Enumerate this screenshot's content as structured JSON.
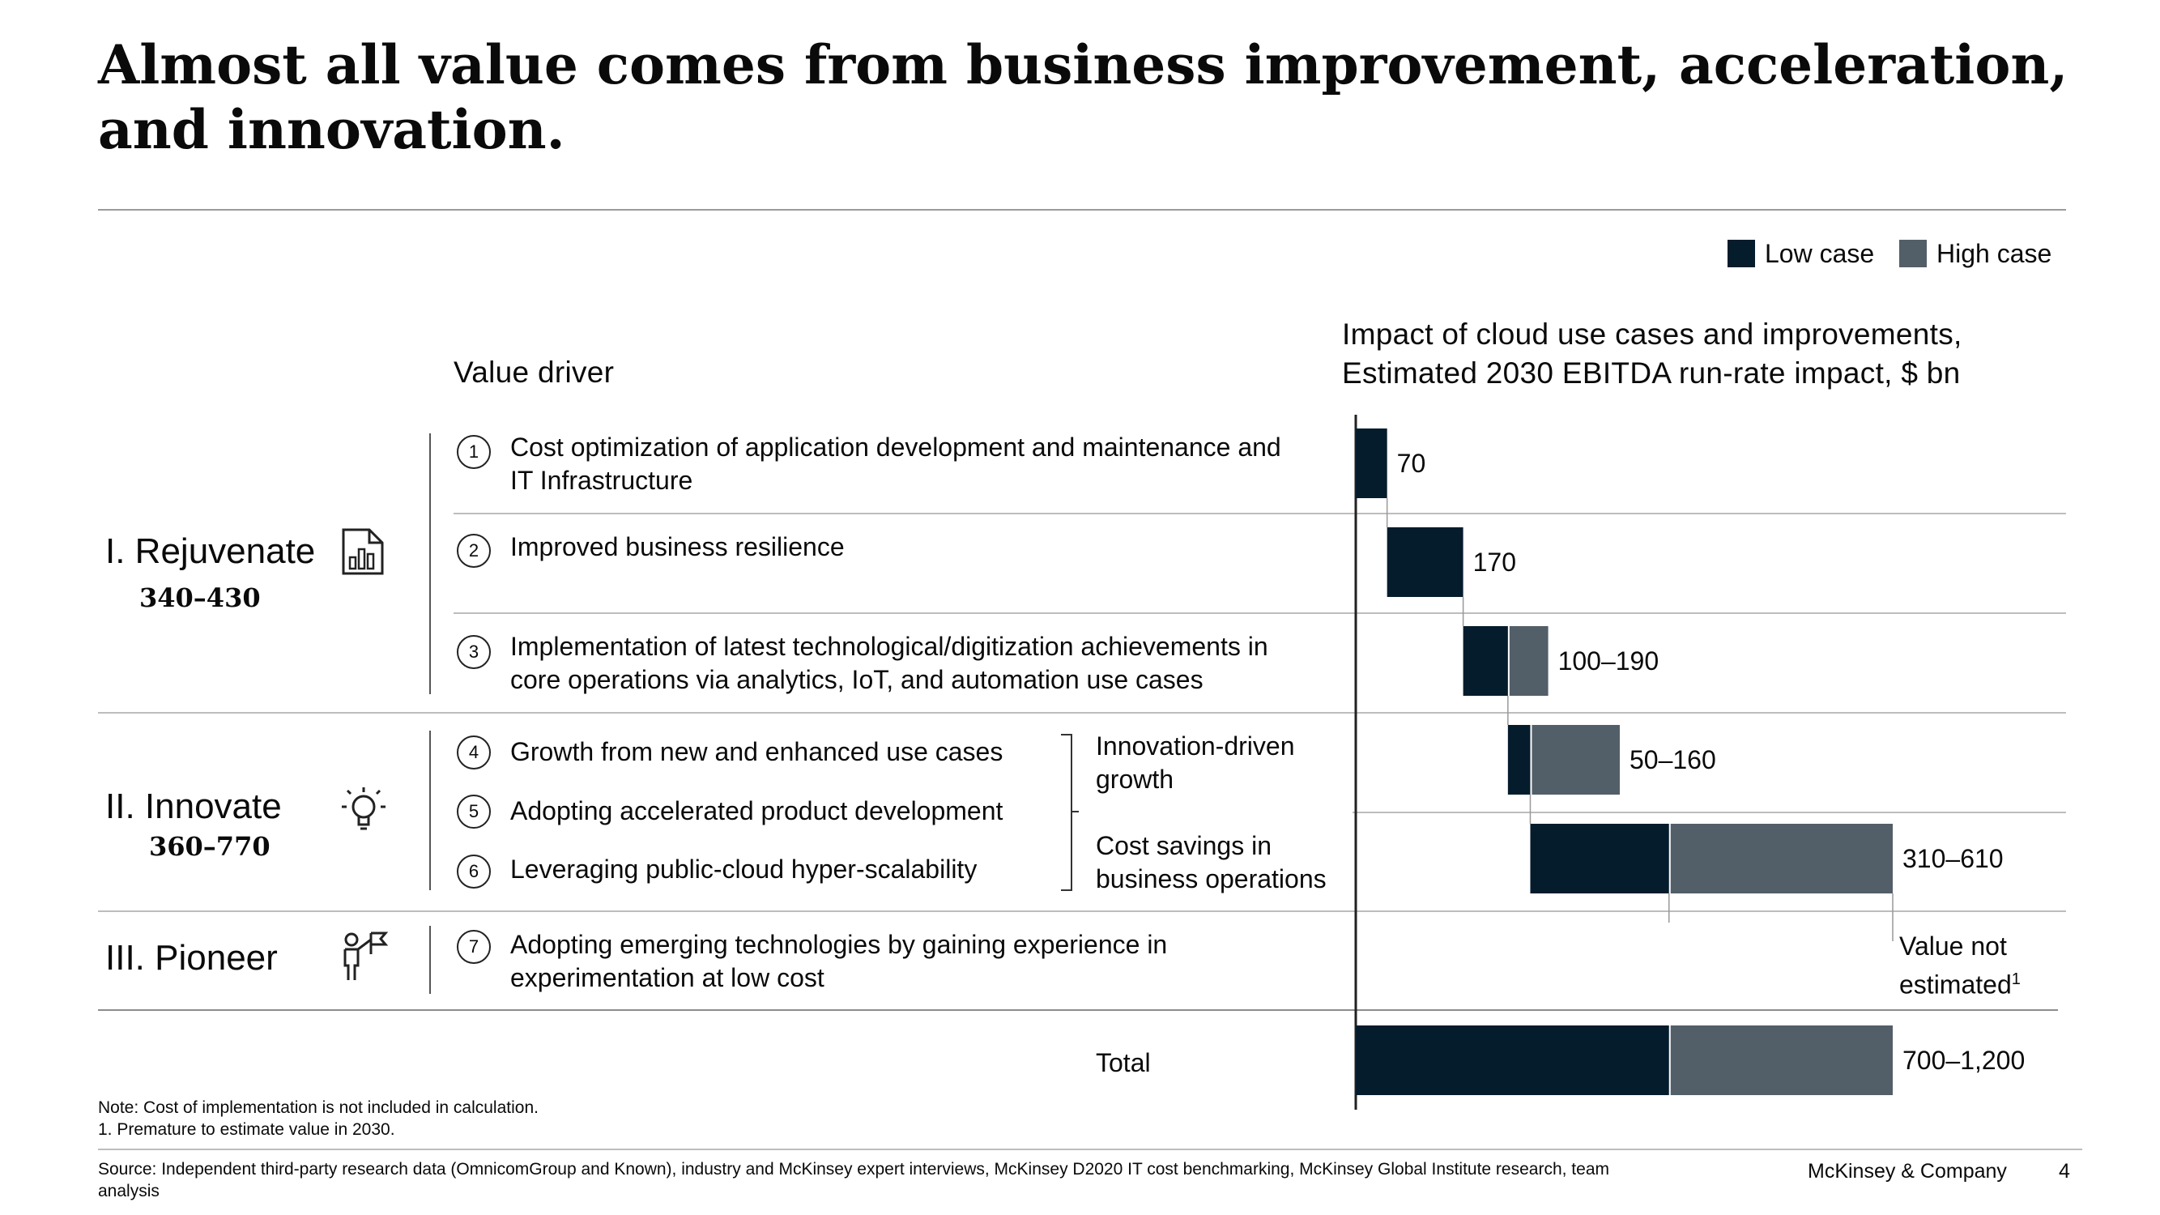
{
  "title": {
    "line1": "Almost all value comes from business improvement, acceleration,",
    "line2": "and innovation."
  },
  "legend": {
    "low_label": "Low case",
    "high_label": "High case",
    "low_color": "#051c2c",
    "high_color": "#525e68"
  },
  "headers": {
    "value_driver": "Value driver",
    "impact_line1": "Impact of cloud use cases and improvements,",
    "impact_line2": "Estimated 2030 EBITDA run-rate impact, $ bn"
  },
  "categories": [
    {
      "name": "I. Rejuvenate",
      "range": "340–430",
      "icon": "bar-chart-document-icon"
    },
    {
      "name": "II. Innovate",
      "range": "360–770",
      "icon": "lightbulb-icon"
    },
    {
      "name": "III. Pioneer",
      "name_icon": "person-flag-icon",
      "range": ""
    }
  ],
  "drivers": [
    {
      "num": "1",
      "line1": "Cost optimization of application development and maintenance and",
      "line2": "IT Infrastructure"
    },
    {
      "num": "2",
      "line1": "Improved business resilience",
      "line2": ""
    },
    {
      "num": "3",
      "line1": "Implementation of latest technological/digitization achievements in",
      "line2": "core operations via analytics, IoT, and automation use cases"
    },
    {
      "num": "4",
      "line1": "Growth from new and enhanced use cases",
      "line2": ""
    },
    {
      "num": "5",
      "line1": "Adopting accelerated product development",
      "line2": ""
    },
    {
      "num": "6",
      "line1": "Leveraging public-cloud hyper-scalability",
      "line2": ""
    },
    {
      "num": "7",
      "line1": "Adopting emerging technologies by gaining experience in",
      "line2": "experimentation at low cost"
    }
  ],
  "groups": {
    "innovation_line1": "Innovation-driven",
    "innovation_line2": "growth",
    "cost_line1": "Cost savings in",
    "cost_line2": "business operations",
    "total_label": "Total"
  },
  "not_estimated": {
    "line1": "Value not",
    "line2": "estimated",
    "sup": "1"
  },
  "chart_data": {
    "type": "bar",
    "subtype": "waterfall",
    "title": "Impact of cloud use cases and improvements, Estimated 2030 EBITDA run-rate impact, $ bn",
    "categories": [
      "1",
      "2",
      "3",
      "Innovation-driven growth",
      "Cost savings in business operations",
      "7",
      "Total"
    ],
    "series": [
      {
        "name": "Low case",
        "values": [
          70,
          170,
          100,
          50,
          310,
          null,
          700
        ]
      },
      {
        "name": "High case",
        "values": [
          70,
          170,
          190,
          160,
          610,
          null,
          1200
        ]
      }
    ],
    "labels": [
      "70",
      "170",
      "100–190",
      "50–160",
      "310–610",
      "",
      "700–1,200"
    ]
  },
  "footer": {
    "note": "Note: Cost of implementation is not included in calculation.",
    "footnote": "1. Premature to estimate value in 2030.",
    "source_line1": "Source: Independent third-party research data (OmnicomGroup and Known), industry and McKinsey expert interviews, McKinsey D2020 IT cost benchmarking, McKinsey Global Institute research, team",
    "source_line2": "analysis",
    "company": "McKinsey & Company",
    "page": "4"
  }
}
